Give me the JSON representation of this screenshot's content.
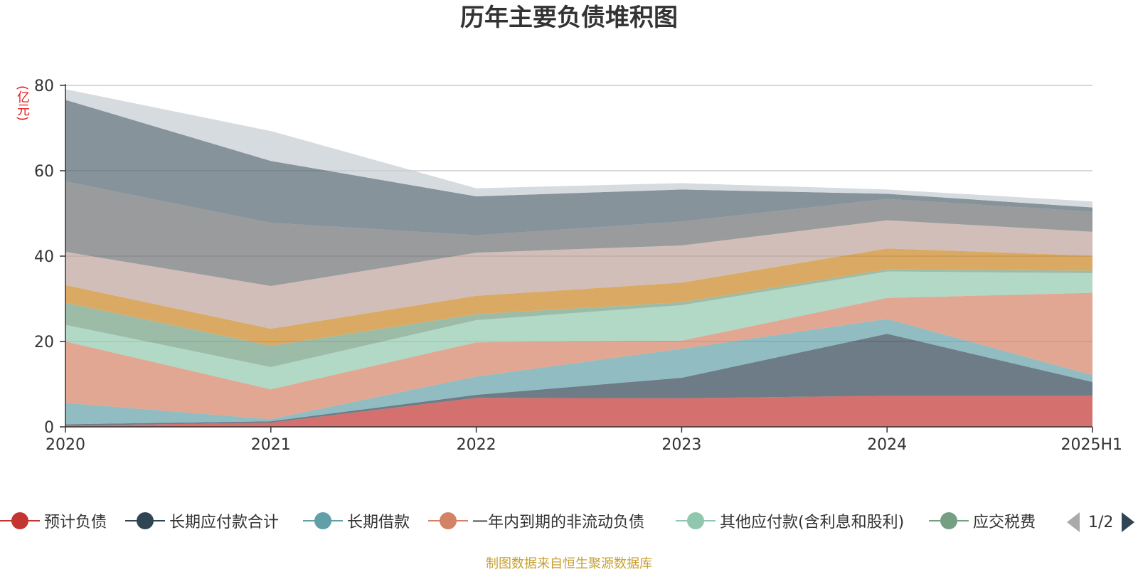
{
  "title": "历年主要负债堆积图",
  "unit_label": "(亿元)",
  "source": "制图数据来自恒生聚源数据库",
  "pager": {
    "text": "1/2"
  },
  "chart_data": {
    "type": "area",
    "stacked": true,
    "title": "历年主要负债堆积图",
    "ylabel": "(亿元)",
    "ylim": [
      0,
      80
    ],
    "yticks": [
      0,
      20,
      40,
      60,
      80
    ],
    "categories": [
      "2020",
      "2021",
      "2022",
      "2023",
      "2024",
      "2025H1"
    ],
    "grid": true,
    "legend_position": "bottom",
    "series": [
      {
        "name": "预计负债",
        "color": "#c23531",
        "values": [
          0.3,
          1.0,
          6.8,
          6.7,
          7.3,
          7.3
        ]
      },
      {
        "name": "长期应付款合计",
        "color": "#2f4554",
        "values": [
          0.3,
          0.3,
          0.7,
          4.8,
          14.5,
          3.2
        ]
      },
      {
        "name": "长期借款",
        "color": "#61a0a8",
        "values": [
          5.0,
          0.5,
          4.3,
          6.8,
          3.5,
          1.6
        ]
      },
      {
        "name": "一年内到期的非流动负债",
        "color": "#d48265",
        "values": [
          14.4,
          7.0,
          8.0,
          1.9,
          4.9,
          19.3
        ]
      },
      {
        "name": "其他应付款(含利息和股利)",
        "color": "#91c7ae",
        "values": [
          3.9,
          5.2,
          5.2,
          8.3,
          6.2,
          4.6
        ]
      },
      {
        "name": "应交税费",
        "color": "#749f83",
        "values": [
          5.2,
          5.0,
          1.4,
          0.7,
          0.5,
          0.6
        ]
      },
      {
        "name": "",
        "color": "#ca8622",
        "values": [
          4.1,
          4.0,
          4.3,
          4.6,
          4.9,
          3.5
        ]
      },
      {
        "name": "",
        "color": "#bda29a",
        "values": [
          7.8,
          10.0,
          10.1,
          8.7,
          6.6,
          5.6
        ]
      },
      {
        "name": "",
        "color": "#6e7074",
        "values": [
          16.5,
          14.8,
          4.1,
          5.6,
          5.0,
          4.7
        ]
      },
      {
        "name": "",
        "color": "#546570",
        "values": [
          19.1,
          14.5,
          9.1,
          7.5,
          1.2,
          1.0
        ]
      },
      {
        "name": "",
        "color": "#c4ccd3",
        "values": [
          2.5,
          7.0,
          1.9,
          1.5,
          1.0,
          1.4
        ]
      }
    ]
  }
}
